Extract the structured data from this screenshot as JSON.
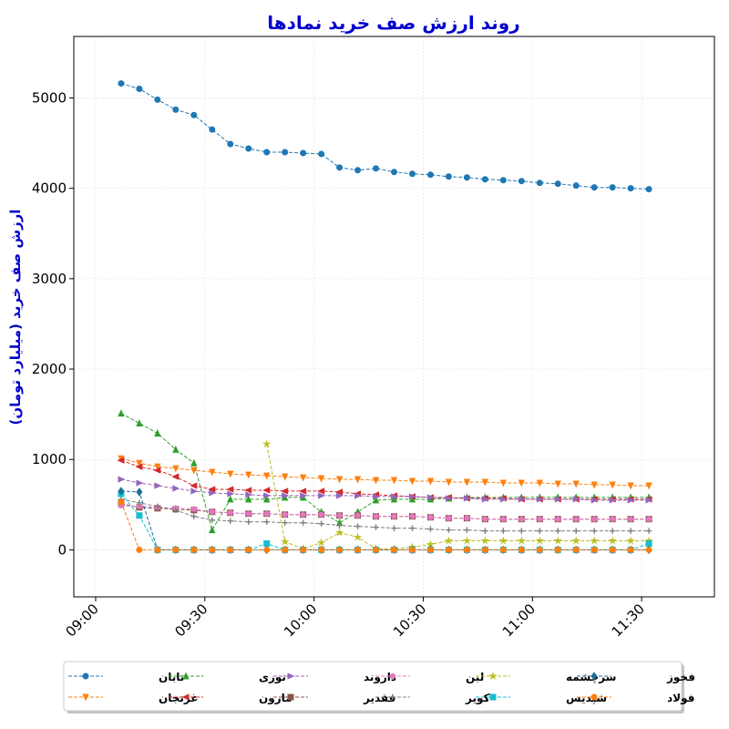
{
  "chart_data": {
    "type": "line",
    "title": "روند ارزش صف خرید نمادها",
    "ylabel": "ارزش صف خرید (میلیارد تومان)",
    "xlabel": "",
    "ylim": [
      -520,
      5680
    ],
    "xlim_minutes": [
      -6,
      170
    ],
    "yticks": [
      0,
      1000,
      2000,
      3000,
      4000,
      5000
    ],
    "xticks": [
      {
        "label": "09:00",
        "minutes": 0
      },
      {
        "label": "09:30",
        "minutes": 30
      },
      {
        "label": "10:00",
        "minutes": 60
      },
      {
        "label": "10:30",
        "minutes": 90
      },
      {
        "label": "11:00",
        "minutes": 120
      },
      {
        "label": "11:30",
        "minutes": 150
      }
    ],
    "grid": true,
    "legend_position": "bottom",
    "x": [
      "09:07",
      "09:12",
      "09:17",
      "09:22",
      "09:27",
      "09:32",
      "09:37",
      "09:42",
      "09:47",
      "09:52",
      "09:57",
      "10:02",
      "10:07",
      "10:12",
      "10:17",
      "10:22",
      "10:27",
      "10:32",
      "10:37",
      "10:42",
      "10:47",
      "10:52",
      "10:57",
      "11:02",
      "11:07",
      "11:12",
      "11:17",
      "11:22",
      "11:27",
      "11:32",
      "11:37",
      "11:42"
    ],
    "series": [
      {
        "name": "تابان",
        "color": "#1f77b4",
        "marker": "circle",
        "values": [
          5160,
          5100,
          4980,
          4870,
          4810,
          4650,
          4490,
          4440,
          4400,
          4400,
          4390,
          4380,
          4230,
          4200,
          4220,
          4180,
          4160,
          4150,
          4130,
          4120,
          4100,
          4090,
          4080,
          4060,
          4050,
          4030,
          4010,
          4010,
          4000,
          3990,
          null,
          null
        ]
      },
      {
        "name": "غزنجان",
        "color": "#ff7f0e",
        "marker": "triangle-down",
        "values": [
          1010,
          960,
          920,
          900,
          880,
          860,
          840,
          830,
          820,
          810,
          800,
          790,
          780,
          780,
          770,
          770,
          760,
          760,
          750,
          750,
          750,
          740,
          740,
          740,
          730,
          730,
          720,
          720,
          710,
          710,
          null,
          null
        ]
      },
      {
        "name": "نوری",
        "color": "#2ca02c",
        "marker": "triangle-up",
        "values": [
          1510,
          1400,
          1290,
          1110,
          960,
          220,
          560,
          560,
          560,
          580,
          580,
          420,
          300,
          420,
          550,
          560,
          560,
          560,
          570,
          580,
          580,
          580,
          580,
          580,
          580,
          580,
          580,
          580,
          580,
          580,
          null,
          null
        ]
      },
      {
        "name": "مارون",
        "color": "#d62728",
        "marker": "triangle-left",
        "values": [
          990,
          920,
          880,
          810,
          710,
          670,
          670,
          660,
          660,
          650,
          650,
          650,
          640,
          620,
          610,
          600,
          590,
          580,
          580,
          570,
          570,
          570,
          560,
          560,
          560,
          560,
          560,
          560,
          560,
          560,
          null,
          null
        ]
      },
      {
        "name": "داروند",
        "color": "#9467bd",
        "marker": "triangle-right",
        "values": [
          780,
          740,
          710,
          680,
          650,
          630,
          620,
          610,
          600,
          600,
          600,
          600,
          600,
          600,
          590,
          590,
          590,
          580,
          570,
          570,
          560,
          560,
          560,
          560,
          560,
          560,
          550,
          550,
          550,
          550,
          null,
          null
        ]
      },
      {
        "name": "فقدیر",
        "color": "#8c564b",
        "marker": "square",
        "values": [
          510,
          470,
          460,
          450,
          440,
          420,
          410,
          400,
          400,
          390,
          390,
          390,
          380,
          380,
          370,
          370,
          370,
          360,
          350,
          350,
          340,
          340,
          340,
          340,
          340,
          340,
          340,
          340,
          340,
          340,
          null,
          null
        ]
      },
      {
        "name": "لبن",
        "color": "#e377c2",
        "marker": "pentagon",
        "values": [
          490,
          480,
          470,
          460,
          450,
          420,
          410,
          400,
          400,
          390,
          390,
          390,
          380,
          380,
          370,
          370,
          370,
          360,
          350,
          350,
          340,
          340,
          340,
          340,
          340,
          340,
          340,
          340,
          340,
          340,
          null,
          null
        ]
      },
      {
        "name": "کویر",
        "color": "#7f7f7f",
        "marker": "plus",
        "values": [
          560,
          520,
          480,
          440,
          370,
          330,
          320,
          310,
          310,
          300,
          300,
          290,
          270,
          260,
          250,
          240,
          240,
          230,
          220,
          220,
          210,
          210,
          210,
          210,
          210,
          210,
          210,
          210,
          210,
          210,
          null,
          null
        ]
      },
      {
        "name": "سرچشمه",
        "color": "#bcbd22",
        "marker": "star",
        "values": [
          null,
          null,
          null,
          null,
          null,
          null,
          null,
          null,
          1170,
          90,
          10,
          80,
          190,
          140,
          10,
          10,
          30,
          60,
          100,
          100,
          100,
          100,
          100,
          100,
          100,
          100,
          100,
          100,
          100,
          100,
          null,
          null
        ]
      },
      {
        "name": "شپدیس",
        "color": "#17becf",
        "marker": "square",
        "values": [
          620,
          380,
          0,
          0,
          0,
          0,
          0,
          0,
          70,
          0,
          0,
          0,
          0,
          0,
          0,
          0,
          0,
          0,
          0,
          0,
          0,
          0,
          0,
          0,
          0,
          0,
          0,
          0,
          0,
          70,
          null,
          null
        ]
      },
      {
        "name": "فخوز",
        "color": "#1f6d9a",
        "marker": "diamond",
        "values": [
          650,
          640,
          0,
          0,
          0,
          0,
          0,
          0,
          0,
          0,
          0,
          0,
          0,
          0,
          0,
          0,
          0,
          0,
          0,
          0,
          0,
          0,
          0,
          0,
          0,
          0,
          0,
          0,
          0,
          0,
          null,
          null
        ]
      },
      {
        "name": "فولاد",
        "color": "#ff7f0e",
        "marker": "circle",
        "values": [
          530,
          0,
          0,
          0,
          0,
          0,
          0,
          0,
          0,
          0,
          0,
          0,
          0,
          0,
          0,
          0,
          0,
          0,
          0,
          0,
          0,
          0,
          0,
          0,
          0,
          0,
          0,
          0,
          0,
          0,
          null,
          null
        ]
      }
    ]
  }
}
